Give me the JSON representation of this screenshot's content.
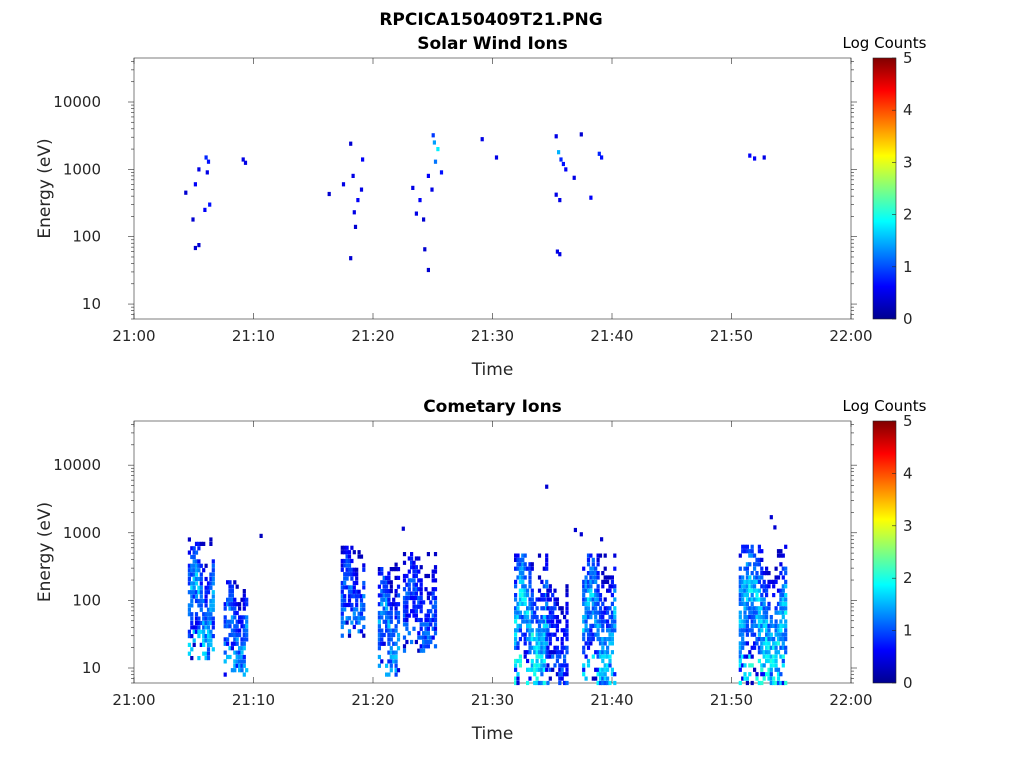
{
  "figure_title": "RPCICA150409T21.PNG",
  "colors": {
    "axis": "#262626",
    "background": "#ffffff"
  },
  "chart_data": [
    {
      "type": "heatmap",
      "title": "Solar Wind Ions",
      "xlabel": "Time",
      "ylabel": "Energy (eV)",
      "x_range": [
        "21:00",
        "22:00"
      ],
      "x_ticks": [
        "21:00",
        "21:10",
        "21:20",
        "21:30",
        "21:40",
        "21:50",
        "22:00"
      ],
      "y_scale": "log",
      "y_range": [
        6,
        45000
      ],
      "y_ticks": [
        "10",
        "100",
        "1000",
        "10000"
      ],
      "colorbar": {
        "label": "Log Counts",
        "range": [
          0,
          5
        ],
        "ticks": [
          "0",
          "1",
          "2",
          "3",
          "4",
          "5"
        ],
        "colormap": "jet"
      },
      "cells": [
        [
          "21:04.2",
          450,
          0.4
        ],
        [
          "21:05.0",
          600,
          0.6
        ],
        [
          "21:05.3",
          1000,
          0.5
        ],
        [
          "21:05.9",
          1500,
          0.8
        ],
        [
          "21:06.1",
          1300,
          0.7
        ],
        [
          "21:06.0",
          900,
          0.5
        ],
        [
          "21:06.2",
          300,
          0.7
        ],
        [
          "21:05.8",
          250,
          0.6
        ],
        [
          "21:04.8",
          180,
          0.4
        ],
        [
          "21:05.0",
          68,
          0.4
        ],
        [
          "21:05.3",
          75,
          0.4
        ],
        [
          "21:09.0",
          1400,
          0.5
        ],
        [
          "21:09.2",
          1250,
          0.5
        ],
        [
          "21:16.2",
          430,
          0.4
        ],
        [
          "21:17.4",
          600,
          0.5
        ],
        [
          "21:18.0",
          2400,
          0.4
        ],
        [
          "21:18.2",
          800,
          0.5
        ],
        [
          "21:18.6",
          350,
          0.6
        ],
        [
          "21:18.3",
          230,
          0.5
        ],
        [
          "21:18.4",
          140,
          0.4
        ],
        [
          "21:18.0",
          48,
          0.4
        ],
        [
          "21:19.0",
          1400,
          0.6
        ],
        [
          "21:18.9",
          500,
          0.5
        ],
        [
          "21:23.2",
          530,
          0.5
        ],
        [
          "21:23.8",
          350,
          0.6
        ],
        [
          "21:23.5",
          220,
          0.5
        ],
        [
          "21:24.1",
          180,
          0.4
        ],
        [
          "21:24.2",
          65,
          0.4
        ],
        [
          "21:24.5",
          32,
          0.4
        ],
        [
          "21:24.8",
          500,
          0.5
        ],
        [
          "21:24.5",
          800,
          0.6
        ],
        [
          "21:25.0",
          2500,
          1.4
        ],
        [
          "21:25.3",
          2000,
          1.8
        ],
        [
          "21:25.1",
          1300,
          1.2
        ],
        [
          "21:25.6",
          900,
          0.7
        ],
        [
          "21:24.9",
          3200,
          0.9
        ],
        [
          "21:29.0",
          2800,
          0.5
        ],
        [
          "21:30.2",
          1500,
          0.5
        ],
        [
          "21:35.2",
          3100,
          0.5
        ],
        [
          "21:35.4",
          1800,
          1.5
        ],
        [
          "21:35.6",
          1400,
          0.8
        ],
        [
          "21:36.0",
          1000,
          0.6
        ],
        [
          "21:35.8",
          1200,
          0.7
        ],
        [
          "21:36.7",
          750,
          0.5
        ],
        [
          "21:35.2",
          420,
          0.5
        ],
        [
          "21:35.5",
          350,
          0.5
        ],
        [
          "21:35.3",
          60,
          0.5
        ],
        [
          "21:35.5",
          55,
          0.5
        ],
        [
          "21:37.3",
          3300,
          0.4
        ],
        [
          "21:38.1",
          380,
          0.6
        ],
        [
          "21:38.8",
          1700,
          0.8
        ],
        [
          "21:39.0",
          1500,
          0.7
        ],
        [
          "21:51.4",
          1600,
          0.6
        ],
        [
          "21:51.8",
          1450,
          0.6
        ],
        [
          "21:52.6",
          1500,
          0.5
        ]
      ]
    },
    {
      "type": "heatmap",
      "title": "Cometary Ions",
      "xlabel": "Time",
      "ylabel": "Energy (eV)",
      "x_range": [
        "21:00",
        "22:00"
      ],
      "x_ticks": [
        "21:00",
        "21:10",
        "21:20",
        "21:30",
        "21:40",
        "21:50",
        "22:00"
      ],
      "y_scale": "log",
      "y_range": [
        6,
        45000
      ],
      "y_ticks": [
        "10",
        "100",
        "1000",
        "10000"
      ],
      "colorbar": {
        "label": "Log Counts",
        "range": [
          0,
          5
        ],
        "ticks": [
          "0",
          "1",
          "2",
          "3",
          "4",
          "5"
        ],
        "colormap": "jet"
      },
      "bursts": [
        {
          "t0": "21:04.5",
          "t1": "21:06.6",
          "emin": 14,
          "emax": 800,
          "peak": 1.8
        },
        {
          "t0": "21:07.5",
          "t1": "21:09.4",
          "emin": 8,
          "emax": 200,
          "peak": 1.6
        },
        {
          "t0": "21:17.3",
          "t1": "21:19.3",
          "emin": 30,
          "emax": 600,
          "peak": 1.4
        },
        {
          "t0": "21:20.4",
          "t1": "21:22.2",
          "emin": 8,
          "emax": 350,
          "peak": 1.7
        },
        {
          "t0": "21:22.5",
          "t1": "21:25.3",
          "emin": 18,
          "emax": 500,
          "peak": 1.3
        },
        {
          "t0": "21:31.8",
          "t1": "21:34.6",
          "emin": 6,
          "emax": 500,
          "peak": 2.1
        },
        {
          "t0": "21:34.5",
          "t1": "21:36.3",
          "emin": 6,
          "emax": 180,
          "peak": 1.2
        },
        {
          "t0": "21:37.5",
          "t1": "21:40.3",
          "emin": 6,
          "emax": 500,
          "peak": 1.9
        },
        {
          "t0": "21:50.6",
          "t1": "21:54.6",
          "emin": 6,
          "emax": 700,
          "peak": 2.1
        }
      ],
      "cells": [
        [
          "21:34.4",
          4800,
          0.4
        ],
        [
          "21:22.4",
          1150,
          0.4
        ],
        [
          "21:36.8",
          1100,
          0.4
        ],
        [
          "21:37.3",
          950,
          0.4
        ],
        [
          "21:53.2",
          1700,
          0.4
        ],
        [
          "21:53.5",
          1200,
          0.4
        ],
        [
          "21:39.0",
          800,
          0.4
        ],
        [
          "21:10.5",
          900,
          0.3
        ]
      ]
    }
  ]
}
